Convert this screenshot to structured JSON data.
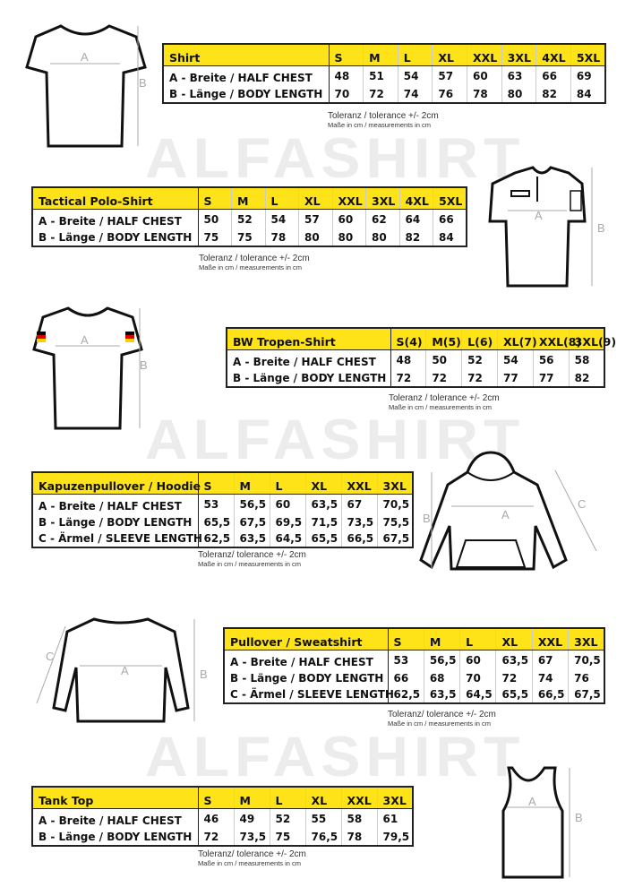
{
  "watermark": "ALFASHIRT",
  "tables": [
    {
      "title": "Shirt",
      "sizes": [
        "S",
        "M",
        "L",
        "XL",
        "XXL",
        "3XL",
        "4XL",
        "5XL"
      ],
      "rows": [
        {
          "label": "A -  Breite / HALF CHEST",
          "values": [
            "48",
            "51",
            "54",
            "57",
            "60",
            "63",
            "66",
            "69"
          ]
        },
        {
          "label": "B -  Länge / BODY LENGTH",
          "values": [
            "70",
            "72",
            "74",
            "76",
            "78",
            "80",
            "82",
            "84"
          ]
        }
      ],
      "note1": "Toleranz / tolerance +/- 2cm",
      "note2": "Maße in cm / measurements in cm"
    },
    {
      "title": "Tactical Polo-Shirt",
      "sizes": [
        "S",
        "M",
        "L",
        "XL",
        "XXL",
        "3XL",
        "4XL",
        "5XL"
      ],
      "rows": [
        {
          "label": "A -  Breite / HALF CHEST",
          "values": [
            "50",
            "52",
            "54",
            "57",
            "60",
            "62",
            "64",
            "66"
          ]
        },
        {
          "label": "B -  Länge / BODY LENGTH",
          "values": [
            "75",
            "75",
            "78",
            "80",
            "80",
            "80",
            "82",
            "84"
          ]
        }
      ],
      "note1": "Toleranz / tolerance +/- 2cm",
      "note2": "Maße in cm / measurements in cm"
    },
    {
      "title": "BW Tropen-Shirt",
      "sizes": [
        "S(4)",
        "M(5)",
        "L(6)",
        "XL(7)",
        "XXL(8)",
        "3XL(9)"
      ],
      "rows": [
        {
          "label": "A -  Breite / HALF CHEST",
          "values": [
            "48",
            "50",
            "52",
            "54",
            "56",
            "58"
          ]
        },
        {
          "label": "B -  Länge / BODY LENGTH",
          "values": [
            "72",
            "72",
            "72",
            "77",
            "77",
            "82"
          ]
        }
      ],
      "note1": "Toleranz / tolerance +/- 2cm",
      "note2": "Maße in cm / measurements in cm"
    },
    {
      "title": "Kapuzenpullover / Hoodie",
      "sizes": [
        "S",
        "M",
        "L",
        "XL",
        "XXL",
        "3XL"
      ],
      "rows": [
        {
          "label": "A -  Breite / HALF CHEST",
          "values": [
            "53",
            "56,5",
            "60",
            "63,5",
            "67",
            "70,5"
          ]
        },
        {
          "label": "B -  Länge / BODY LENGTH",
          "values": [
            "65,5",
            "67,5",
            "69,5",
            "71,5",
            "73,5",
            "75,5"
          ]
        },
        {
          "label": "C -  Ärmel / SLEEVE LENGTH",
          "values": [
            "62,5",
            "63,5",
            "64,5",
            "65,5",
            "66,5",
            "67,5"
          ]
        }
      ],
      "note1": "Toleranz/ tolerance +/- 2cm",
      "note2": "Maße in cm / measurements in cm"
    },
    {
      "title": "Pullover / Sweatshirt",
      "sizes": [
        "S",
        "M",
        "L",
        "XL",
        "XXL",
        "3XL"
      ],
      "rows": [
        {
          "label": "A -  Breite / HALF CHEST",
          "values": [
            "53",
            "56,5",
            "60",
            "63,5",
            "67",
            "70,5"
          ]
        },
        {
          "label": "B -  Länge / BODY LENGTH",
          "values": [
            "66",
            "68",
            "70",
            "72",
            "74",
            "76"
          ]
        },
        {
          "label": "C -  Ärmel / SLEEVE LENGTH",
          "values": [
            "62,5",
            "63,5",
            "64,5",
            "65,5",
            "66,5",
            "67,5"
          ]
        }
      ],
      "note1": "Toleranz/ tolerance +/- 2cm",
      "note2": "Maße in cm / measurements in cm"
    },
    {
      "title": "Tank Top",
      "sizes": [
        "S",
        "M",
        "L",
        "XL",
        "XXL",
        "3XL"
      ],
      "rows": [
        {
          "label": "A -  Breite / HALF CHEST",
          "values": [
            "46",
            "49",
            "52",
            "55",
            "58",
            "61"
          ]
        },
        {
          "label": "B -  Länge / BODY LENGTH",
          "values": [
            "72",
            "73,5",
            "75",
            "76,5",
            "78",
            "79,5"
          ]
        }
      ],
      "note1": "Toleranz/ tolerance +/- 2cm",
      "note2": "Maße in cm / measurements in cm"
    }
  ],
  "diagram_labels": {
    "a": "A",
    "b": "B",
    "c": "C"
  },
  "colors": {
    "header_yellow": "#fde318",
    "border": "#222222"
  }
}
